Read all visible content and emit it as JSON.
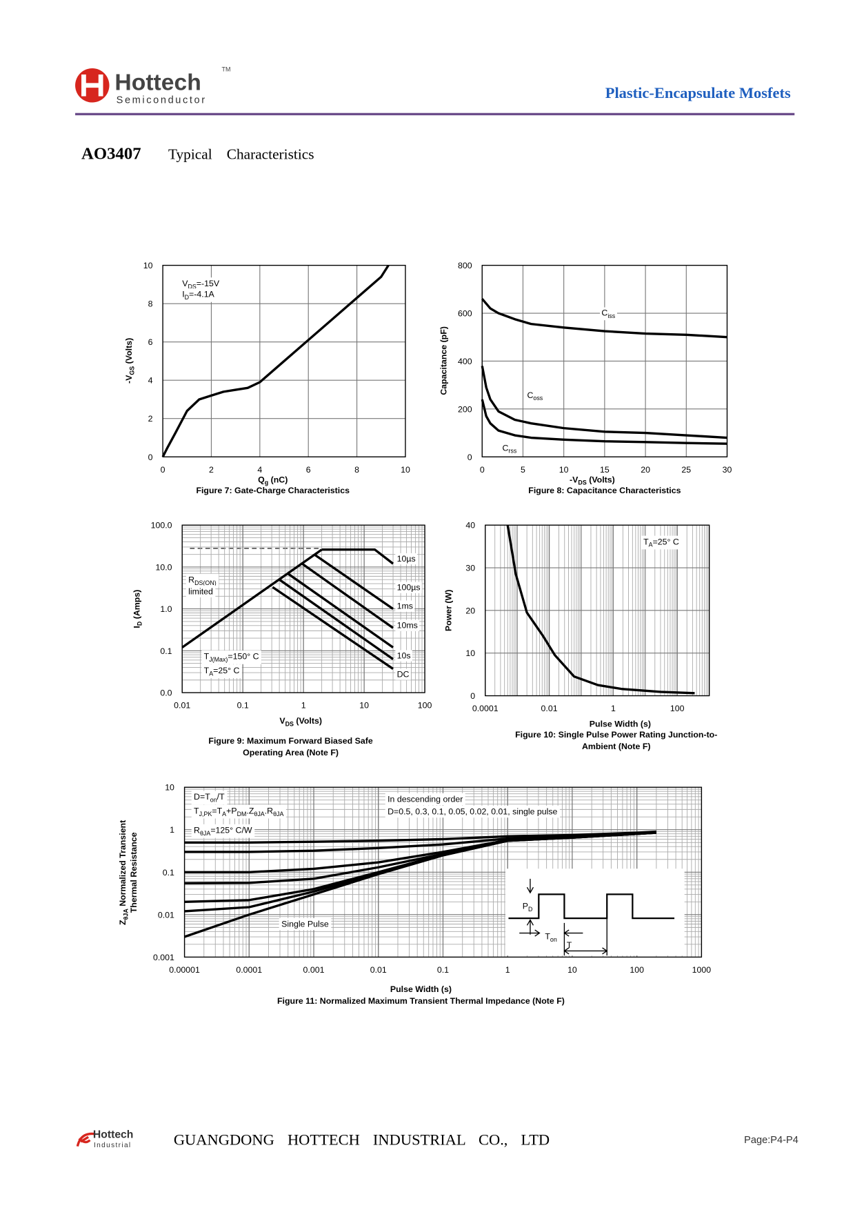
{
  "header": {
    "brand": "Hottech",
    "tm": "TM",
    "subbrand": "Semiconductor",
    "product_line": "Plastic-Encapsulate Mosfets"
  },
  "heading": {
    "part": "AO3407",
    "subtitle": "Typical Characteristics"
  },
  "chart_data": [
    {
      "type": "line",
      "caption": [
        "Figure 7: Gate-Charge Characteristics"
      ],
      "xlabel": [
        "Q",
        "g",
        " (nC)"
      ],
      "ylabel": [
        "-V",
        "GS",
        " (Volts)"
      ],
      "xlim": [
        0,
        10
      ],
      "xticks": [
        0,
        2,
        4,
        6,
        8,
        10
      ],
      "ylim": [
        0,
        10
      ],
      "yticks": [
        0,
        2,
        4,
        6,
        8,
        10
      ],
      "grid": true,
      "annotations": [
        [
          "V",
          "DS",
          "=-15V"
        ],
        [
          "I",
          "D",
          "=-4.1A"
        ]
      ],
      "series": [
        {
          "color": "#000000",
          "x": [
            0,
            0.2,
            0.5,
            1,
            1.5,
            2,
            2.5,
            3,
            3.5,
            4,
            5,
            6,
            7,
            8,
            9,
            9.3
          ],
          "values": [
            0,
            0.5,
            1.2,
            2.4,
            3.0,
            3.2,
            3.4,
            3.5,
            3.6,
            3.9,
            5.0,
            6.1,
            7.2,
            8.3,
            9.4,
            10
          ]
        }
      ]
    },
    {
      "type": "line",
      "caption": [
        "Figure 8: Capacitance Characteristics"
      ],
      "xlabel": [
        "-V",
        "DS",
        " (Volts)"
      ],
      "ylabel": "Capacitance (pF)",
      "xlim": [
        0,
        30
      ],
      "xticks": [
        0,
        5,
        10,
        15,
        20,
        25,
        30
      ],
      "ylim": [
        0,
        800
      ],
      "yticks": [
        0,
        200,
        400,
        600,
        800
      ],
      "grid": true,
      "series": [
        {
          "name": [
            "C",
            "iss"
          ],
          "color": "#000000",
          "x": [
            0,
            1,
            2,
            4,
            6,
            10,
            15,
            20,
            25,
            30
          ],
          "values": [
            660,
            620,
            600,
            575,
            555,
            540,
            525,
            515,
            510,
            500
          ]
        },
        {
          "name": [
            "C",
            "oss"
          ],
          "color": "#000000",
          "x": [
            0,
            0.5,
            1,
            2,
            4,
            6,
            10,
            15,
            20,
            25,
            30
          ],
          "values": [
            380,
            290,
            240,
            190,
            155,
            140,
            120,
            105,
            100,
            90,
            80
          ]
        },
        {
          "name": [
            "C",
            "rss"
          ],
          "color": "#000000",
          "x": [
            0,
            0.5,
            1,
            2,
            4,
            6,
            10,
            15,
            20,
            25,
            30
          ],
          "values": [
            240,
            170,
            140,
            110,
            90,
            80,
            72,
            65,
            62,
            58,
            55
          ]
        }
      ]
    },
    {
      "type": "line",
      "caption": [
        "Figure 9: Maximum Forward Biased Safe",
        "Operating Area (Note F)"
      ],
      "xlabel": [
        "V",
        "DS",
        " (Volts)"
      ],
      "ylabel": [
        "I",
        "D",
        " (Amps)"
      ],
      "xscale": "log",
      "yscale": "log",
      "xlim": [
        0.01,
        100
      ],
      "xticks": [
        0.01,
        0.1,
        1,
        10,
        100
      ],
      "ylim": [
        0.01,
        100
      ],
      "yticks": [
        {
          "value": 0.01,
          "label": "0.0"
        },
        {
          "value": 0.1,
          "label": "0.1"
        },
        {
          "value": 1,
          "label": "1.0"
        },
        {
          "value": 10,
          "label": "10.0"
        },
        {
          "value": 100,
          "label": "100.0"
        }
      ],
      "grid": true,
      "minor_grid": true,
      "annotations": [
        [
          "R",
          "DS(ON)"
        ],
        "limited",
        [
          "T",
          "J(Max)",
          "=150° C"
        ],
        [
          "T",
          "A",
          "=25° C"
        ]
      ],
      "series": [
        {
          "color": "#000000",
          "x": [
            0.01,
            2
          ],
          "values": [
            0.12,
            26
          ]
        },
        {
          "name": "10µs",
          "color": "#000000",
          "x": [
            2,
            15,
            30
          ],
          "values": [
            26,
            26,
            12
          ]
        },
        {
          "name": "100µs",
          "color": "#000000",
          "x": [
            1.5,
            30
          ],
          "values": [
            20,
            1.0
          ]
        },
        {
          "name": "1ms",
          "color": "#000000",
          "x": [
            0.95,
            30
          ],
          "values": [
            12,
            0.35
          ]
        },
        {
          "name": "10ms",
          "color": "#000000",
          "x": [
            0.55,
            30
          ],
          "values": [
            7,
            0.12
          ]
        },
        {
          "name": "10s",
          "color": "#000000",
          "x": [
            0.4,
            30
          ],
          "values": [
            5,
            0.063
          ]
        },
        {
          "name": "DC",
          "color": "#000000",
          "x": [
            0.31,
            30
          ],
          "values": [
            3.3,
            0.037
          ]
        }
      ]
    },
    {
      "type": "line",
      "caption": [
        "Figure 10: Single Pulse Power Rating Junction-to-",
        "Ambient (Note F)"
      ],
      "xlabel": "Pulse Width (s)",
      "ylabel": "Power (W)",
      "xscale": "log",
      "xlim": [
        0.0001,
        1000
      ],
      "xticks": [
        0.0001,
        0.01,
        1,
        100
      ],
      "ylim": [
        0,
        40
      ],
      "yticks": [
        0,
        10,
        20,
        30,
        40
      ],
      "grid": true,
      "minor_grid": true,
      "annotations": [
        [
          "T",
          "A",
          "=25° C"
        ]
      ],
      "series": [
        {
          "color": "#000000",
          "x": [
            0.0005,
            0.0009,
            0.002,
            0.0064,
            0.015,
            0.06,
            0.33,
            1.8,
            30,
            350
          ],
          "values": [
            40,
            28.5,
            19.5,
            14,
            9.5,
            4.5,
            2.5,
            1.6,
            0.9,
            0.6
          ]
        }
      ]
    },
    {
      "type": "line",
      "caption": [
        "Figure 11: Normalized Maximum Transient Thermal Impedance (Note F)"
      ],
      "xlabel": "Pulse Width (s)",
      "ylabel": [
        "Z",
        "θJA",
        " Normalized Transient"
      ],
      "ylabel2": "Thermal Resistance",
      "xscale": "log",
      "yscale": "log",
      "xlim": [
        1e-05,
        1000
      ],
      "xticks": [
        1e-05,
        0.0001,
        0.001,
        0.01,
        0.1,
        1,
        10,
        100,
        1000
      ],
      "ylim": [
        0.001,
        10
      ],
      "yticks": [
        0.001,
        0.01,
        0.1,
        1,
        10
      ],
      "grid": true,
      "minor_grid": true,
      "annotations": [
        [
          "D=T",
          "on",
          "/T"
        ],
        [
          "T",
          "J,PK",
          "=T",
          "A",
          "+P",
          "DM",
          ".Z",
          "θJA",
          ".R",
          "θJA"
        ],
        [
          "R",
          "θJA",
          "=125° C/W"
        ],
        "In descending order",
        "D=0.5, 0.3, 0.1, 0.05, 0.02, 0.01, single pulse",
        "Single Pulse"
      ],
      "inset_labels": [
        [
          "P",
          "D"
        ],
        [
          "T",
          "on"
        ],
        "T"
      ],
      "series": [
        {
          "color": "#000000",
          "x": [
            1e-05,
            0.0001,
            0.001,
            0.01,
            0.1,
            1,
            10,
            100,
            200
          ],
          "values": [
            0.5,
            0.5,
            0.52,
            0.55,
            0.6,
            0.7,
            0.75,
            0.85,
            0.9
          ]
        },
        {
          "color": "#000000",
          "x": [
            1e-05,
            0.0001,
            0.001,
            0.01,
            0.1,
            1,
            10,
            100,
            200
          ],
          "values": [
            0.3,
            0.3,
            0.32,
            0.37,
            0.45,
            0.62,
            0.7,
            0.82,
            0.88
          ]
        },
        {
          "color": "#000000",
          "x": [
            1e-05,
            0.0001,
            0.001,
            0.01,
            0.1,
            1,
            10,
            100,
            200
          ],
          "values": [
            0.1,
            0.1,
            0.12,
            0.17,
            0.3,
            0.57,
            0.67,
            0.8,
            0.86
          ]
        },
        {
          "color": "#000000",
          "x": [
            1e-05,
            0.0001,
            0.001,
            0.01,
            0.1,
            1,
            10,
            100,
            200
          ],
          "values": [
            0.055,
            0.056,
            0.07,
            0.13,
            0.27,
            0.56,
            0.66,
            0.8,
            0.86
          ]
        },
        {
          "color": "#000000",
          "x": [
            1e-05,
            0.0001,
            0.001,
            0.01,
            0.1,
            1,
            10,
            100,
            200
          ],
          "values": [
            0.02,
            0.022,
            0.04,
            0.1,
            0.26,
            0.55,
            0.65,
            0.8,
            0.85
          ]
        },
        {
          "color": "#000000",
          "x": [
            1e-05,
            0.0001,
            0.001,
            0.01,
            0.1,
            1,
            10,
            100,
            200
          ],
          "values": [
            0.012,
            0.015,
            0.035,
            0.095,
            0.25,
            0.55,
            0.65,
            0.8,
            0.85
          ]
        },
        {
          "color": "#000000",
          "x": [
            1e-05,
            0.0001,
            0.001,
            0.01,
            0.1,
            1,
            10,
            100,
            200
          ],
          "values": [
            0.003,
            0.01,
            0.03,
            0.09,
            0.25,
            0.55,
            0.65,
            0.8,
            0.85
          ]
        }
      ]
    }
  ],
  "footer": {
    "brand": "Hottech",
    "subbrand": "Industrial",
    "company": "GUANGDONG HOTTECH INDUSTRIAL CO., LTD",
    "page": "Page:P4-P4"
  }
}
